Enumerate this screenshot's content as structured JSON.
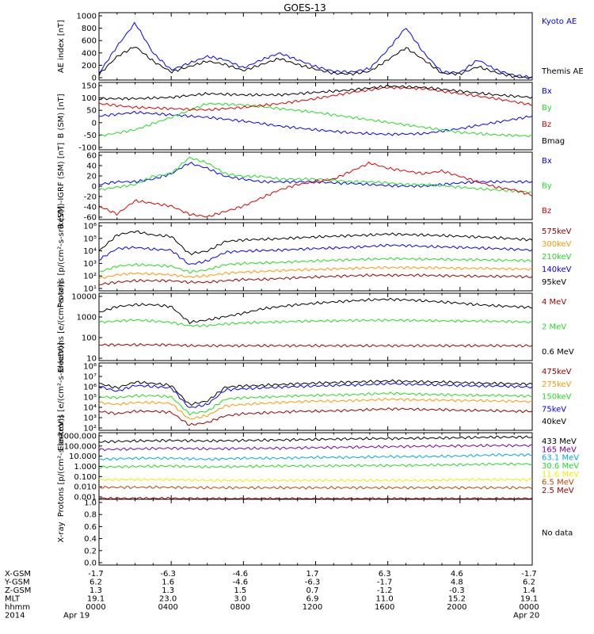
{
  "title": "GOES-13",
  "colors": {
    "black": "#000000",
    "blue": "#0000ff",
    "green": "#22dd22",
    "red": "#dd0000",
    "orange": "#ff9900",
    "darkred": "#990000",
    "purple": "#7700aa",
    "cyan": "#00aadd",
    "yellow": "#eeee00",
    "brown": "#bb4400"
  },
  "chart_data": [
    {
      "type": "line",
      "ylabel": "AE index [nT]",
      "ylim": [
        0,
        1000
      ],
      "yticks": [
        "1000",
        "800",
        "600",
        "400",
        "200",
        "0"
      ],
      "x_hours": [
        0,
        1,
        2,
        3,
        4,
        5,
        6,
        7,
        8,
        9,
        10,
        11,
        12,
        13,
        14,
        15,
        16,
        17,
        18,
        19,
        20,
        21,
        22,
        23,
        24
      ],
      "series": [
        {
          "name": "Kyoto AE",
          "color": "blue",
          "values": [
            100,
            500,
            850,
            400,
            150,
            250,
            350,
            300,
            180,
            300,
            400,
            300,
            200,
            130,
            120,
            170,
            450,
            780,
            400,
            120,
            110,
            300,
            150,
            70,
            40
          ]
        },
        {
          "name": "Themis AE",
          "color": "black",
          "values": [
            80,
            350,
            500,
            280,
            120,
            200,
            280,
            230,
            140,
            230,
            320,
            230,
            160,
            100,
            90,
            130,
            300,
            480,
            300,
            100,
            90,
            200,
            110,
            50,
            30
          ]
        }
      ]
    },
    {
      "type": "line",
      "ylabel": "B (SM) [nT]",
      "ylim": [
        -110,
        160
      ],
      "yticks": [
        "150",
        "100",
        "50",
        "0",
        "-50",
        "-100"
      ],
      "x_hours": [
        0,
        2,
        4,
        6,
        8,
        10,
        12,
        14,
        16,
        18,
        20,
        22,
        24
      ],
      "series": [
        {
          "name": "Bx",
          "color": "blue",
          "values": [
            25,
            40,
            30,
            20,
            5,
            -15,
            -30,
            -42,
            -48,
            -45,
            -25,
            0,
            25
          ]
        },
        {
          "name": "By",
          "color": "green",
          "values": [
            -55,
            -30,
            20,
            75,
            70,
            55,
            40,
            20,
            0,
            -20,
            -40,
            -50,
            -55
          ]
        },
        {
          "name": "Bz",
          "color": "red",
          "values": [
            75,
            60,
            55,
            50,
            60,
            75,
            95,
            120,
            140,
            135,
            115,
            95,
            70
          ]
        },
        {
          "name": "Bmag",
          "color": "black",
          "values": [
            95,
            95,
            100,
            115,
            110,
            110,
            120,
            130,
            145,
            140,
            125,
            110,
            100
          ]
        }
      ]
    },
    {
      "type": "line",
      "ylabel": "B (SM)-IGRF (SM) [nT]",
      "ylim": [
        -65,
        60
      ],
      "yticks": [
        "60",
        "40",
        "20",
        "0",
        "-20",
        "-40",
        "-60"
      ],
      "x_hours": [
        0,
        1,
        2,
        3,
        4,
        5,
        6,
        7,
        8,
        9,
        10,
        11,
        12,
        13,
        14,
        15,
        16,
        17,
        18,
        19,
        20,
        21,
        22,
        23,
        24
      ],
      "series": [
        {
          "name": "Bx",
          "color": "blue",
          "values": [
            0,
            5,
            5,
            10,
            20,
            40,
            30,
            15,
            10,
            5,
            5,
            5,
            5,
            3,
            2,
            0,
            -2,
            -3,
            -3,
            0,
            3,
            5,
            5,
            5,
            5
          ]
        },
        {
          "name": "By",
          "color": "green",
          "values": [
            -10,
            -5,
            0,
            15,
            20,
            50,
            40,
            20,
            15,
            15,
            10,
            10,
            10,
            8,
            5,
            5,
            3,
            0,
            0,
            -2,
            -5,
            -8,
            -10,
            -12,
            -15
          ]
        },
        {
          "name": "Bz",
          "color": "red",
          "values": [
            -40,
            -55,
            -30,
            -35,
            -40,
            -55,
            -60,
            -50,
            -40,
            -25,
            -10,
            0,
            5,
            10,
            25,
            40,
            30,
            25,
            20,
            25,
            15,
            5,
            -5,
            -10,
            -20
          ]
        }
      ]
    },
    {
      "type": "line",
      "ylabel": "Protons [p/(cm²-s-sr-keV)]",
      "yscale": "log",
      "ylim": [
        3,
        1000000
      ],
      "yticks": [
        "10⁶",
        "10⁵",
        "10⁴",
        "10³",
        "10²",
        "10¹"
      ],
      "x_hours": [
        0,
        1,
        2,
        3,
        4,
        5,
        6,
        7,
        8,
        9,
        10,
        11,
        12,
        13,
        14,
        15,
        16,
        17,
        18,
        19,
        20,
        21,
        22,
        23,
        24
      ],
      "series": [
        {
          "name": "575keV",
          "color": "darkred",
          "values": [
            10,
            15,
            20,
            20,
            20,
            15,
            15,
            20,
            25,
            25,
            30,
            35,
            40,
            45,
            50,
            55,
            55,
            55,
            55,
            50,
            50,
            45,
            45,
            45,
            40
          ]
        },
        {
          "name": "300keV",
          "color": "orange",
          "values": [
            30,
            60,
            80,
            70,
            60,
            40,
            50,
            80,
            100,
            110,
            130,
            150,
            160,
            180,
            200,
            220,
            230,
            230,
            220,
            220,
            200,
            200,
            190,
            180,
            170
          ]
        },
        {
          "name": "210keV",
          "color": "green",
          "values": [
            100,
            300,
            400,
            350,
            300,
            100,
            150,
            400,
            500,
            550,
            600,
            700,
            800,
            900,
            1000,
            1100,
            1200,
            1200,
            1100,
            1100,
            1000,
            1000,
            900,
            900,
            800
          ]
        },
        {
          "name": "140keV",
          "color": "blue",
          "values": [
            1000,
            8000,
            10000,
            7000,
            6000,
            400,
            800,
            4000,
            5000,
            5500,
            6000,
            7000,
            8000,
            9000,
            10000,
            12000,
            15000,
            14000,
            12000,
            11000,
            10000,
            9000,
            8000,
            7000,
            6000
          ]
        },
        {
          "name": "95keV",
          "color": "black",
          "values": [
            5000,
            100000,
            200000,
            100000,
            80000,
            3000,
            5000,
            30000,
            40000,
            45000,
            50000,
            60000,
            70000,
            80000,
            90000,
            100000,
            120000,
            110000,
            100000,
            90000,
            80000,
            70000,
            60000,
            50000,
            40000
          ]
        }
      ]
    },
    {
      "type": "line",
      "ylabel": "Electrons [e/(cm²-s-sr)]",
      "yscale": "log",
      "ylim": [
        3,
        10000
      ],
      "yticks": [
        "10000",
        "1000",
        "100",
        "10"
      ],
      "x_hours": [
        0,
        1,
        2,
        3,
        4,
        5,
        6,
        7,
        8,
        9,
        10,
        11,
        12,
        13,
        14,
        15,
        16,
        17,
        18,
        19,
        20,
        21,
        22,
        23,
        24
      ],
      "series": [
        {
          "name": "4 MeV",
          "color": "darkred",
          "values": [
            20,
            20,
            20,
            20,
            20,
            18,
            18,
            18,
            18,
            18,
            18,
            18,
            18,
            18,
            18,
            18,
            18,
            18,
            18,
            18,
            18,
            18,
            18,
            18,
            18
          ]
        },
        {
          "name": "2 MeV",
          "color": "green",
          "values": [
            300,
            350,
            400,
            350,
            300,
            200,
            200,
            250,
            280,
            300,
            320,
            340,
            350,
            360,
            380,
            380,
            390,
            380,
            370,
            360,
            350,
            350,
            340,
            330,
            300
          ]
        },
        {
          "name": "0.6 MeV",
          "color": "black",
          "values": [
            1000,
            2000,
            2500,
            2500,
            2000,
            300,
            400,
            600,
            900,
            1500,
            2000,
            2500,
            3000,
            3500,
            4000,
            4500,
            4800,
            4500,
            4000,
            3500,
            3000,
            2500,
            2200,
            2000,
            1800
          ]
        }
      ]
    },
    {
      "type": "line",
      "ylabel": "Electrons [e/(cm²-s-sr-keV)]",
      "yscale": "log",
      "ylim": [
        100,
        100000000
      ],
      "yticks": [
        "10⁸",
        "10⁷",
        "10⁶",
        "10⁵",
        "10⁴",
        "10³",
        "10²"
      ],
      "x_hours": [
        0,
        1,
        2,
        3,
        4,
        5,
        6,
        7,
        8,
        9,
        10,
        11,
        12,
        13,
        14,
        15,
        16,
        17,
        18,
        19,
        20,
        21,
        22,
        23,
        24
      ],
      "series": [
        {
          "name": "475keV",
          "color": "darkred",
          "values": [
            5000,
            3000,
            5000,
            5000,
            4000,
            300,
            500,
            2000,
            3000,
            3500,
            4000,
            5000,
            5000,
            5500,
            6000,
            7000,
            8000,
            8000,
            7000,
            7000,
            6000,
            6000,
            5500,
            5000,
            5000
          ]
        },
        {
          "name": "275keV",
          "color": "orange",
          "values": [
            30000,
            20000,
            30000,
            30000,
            25000,
            1000,
            2000,
            15000,
            20000,
            25000,
            30000,
            35000,
            40000,
            40000,
            45000,
            50000,
            60000,
            55000,
            50000,
            50000,
            45000,
            45000,
            40000,
            40000,
            35000
          ]
        },
        {
          "name": "150keV",
          "color": "green",
          "values": [
            100000,
            80000,
            120000,
            120000,
            100000,
            3000,
            5000,
            60000,
            80000,
            90000,
            100000,
            120000,
            130000,
            140000,
            150000,
            170000,
            200000,
            180000,
            160000,
            150000,
            140000,
            130000,
            130000,
            120000,
            110000
          ]
        },
        {
          "name": "75keV",
          "color": "blue",
          "values": [
            800000,
            300000,
            1000000,
            800000,
            600000,
            10000,
            20000,
            400000,
            500000,
            600000,
            700000,
            800000,
            900000,
            1000000,
            1100000,
            1200000,
            1500000,
            1300000,
            1200000,
            1100000,
            1000000,
            900000,
            900000,
            800000,
            700000
          ]
        },
        {
          "name": "40keV",
          "color": "black",
          "values": [
            1500000,
            600000,
            2000000,
            1500000,
            1000000,
            20000,
            40000,
            700000,
            900000,
            1000000,
            1200000,
            1400000,
            1600000,
            1800000,
            2000000,
            2200000,
            2500000,
            2300000,
            2100000,
            2000000,
            1800000,
            1600000,
            1500000,
            1400000,
            1300000
          ]
        }
      ]
    },
    {
      "type": "line",
      "ylabel": "Protons [p/(cm²-s-sr-keV)]",
      "yscale": "log",
      "ylim": [
        0.001,
        1000
      ],
      "yticks": [
        "1000.000",
        "100.000",
        "10.000",
        "1.000",
        "0.100",
        "0.010",
        "0.001"
      ],
      "x_hours": [
        0,
        2,
        4,
        6,
        8,
        10,
        12,
        14,
        16,
        18,
        20,
        22,
        24
      ],
      "series": [
        {
          "name": "433 MeV",
          "color": "black",
          "values": [
            150,
            180,
            200,
            180,
            200,
            220,
            250,
            280,
            300,
            320,
            350,
            400,
            400
          ]
        },
        {
          "name": "165 MeV",
          "color": "purple",
          "values": [
            30,
            35,
            40,
            35,
            38,
            40,
            45,
            50,
            55,
            60,
            65,
            70,
            70
          ]
        },
        {
          "name": "63.1 MeV",
          "color": "cyan",
          "values": [
            4,
            5,
            5,
            4,
            5,
            5,
            6,
            6,
            7,
            7,
            8,
            10,
            10
          ]
        },
        {
          "name": "30.6 MeV",
          "color": "green",
          "values": [
            0.8,
            0.9,
            1.0,
            0.8,
            0.9,
            1.0,
            1.0,
            1.1,
            1.1,
            1.2,
            1.3,
            1.5,
            1.5
          ]
        },
        {
          "name": "11.6 MeV",
          "color": "yellow",
          "values": [
            0.06,
            0.06,
            0.06,
            0.05,
            0.05,
            0.05,
            0.05,
            0.05,
            0.05,
            0.05,
            0.06,
            0.06,
            0.06
          ]
        },
        {
          "name": "6.5 MeV",
          "color": "brown",
          "values": [
            0.012,
            0.012,
            0.012,
            0.011,
            0.011,
            0.011,
            0.011,
            0.011,
            0.011,
            0.011,
            0.011,
            0.011,
            0.011
          ]
        },
        {
          "name": "2.5 MeV",
          "color": "darkred",
          "values": [
            0.0012,
            0.0012,
            0.0012,
            0.0011,
            0.0011,
            0.0011,
            0.0011,
            0.0011,
            0.0011,
            0.0011,
            0.0011,
            0.0011,
            0.0011
          ]
        }
      ]
    },
    {
      "type": "line",
      "ylabel": "X-ray",
      "ylim": [
        0,
        1
      ],
      "yticks": [
        "1.0",
        "0.8",
        "0.6",
        "0.4",
        "0.2",
        "0.0"
      ],
      "series": [],
      "note": "No data"
    }
  ],
  "orbit_table": {
    "rows": [
      {
        "label": "X-GSM",
        "values": [
          "-1.7",
          "-6.3",
          "-4.6",
          "1.7",
          "6.3",
          "4.6",
          "-1.7"
        ]
      },
      {
        "label": "Y-GSM",
        "values": [
          "6.2",
          "1.6",
          "-4.6",
          "-6.3",
          "-1.7",
          "4.8",
          "6.2"
        ]
      },
      {
        "label": "Z-GSM",
        "values": [
          "1.3",
          "1.3",
          "1.5",
          "0.7",
          "-1.2",
          "-0.3",
          "1.4"
        ]
      },
      {
        "label": "MLT",
        "values": [
          "19.1",
          "23.0",
          "3.0",
          "6.9",
          "11.0",
          "15.2",
          "19.1"
        ]
      },
      {
        "label": "hhmm",
        "values": [
          "0000",
          "0400",
          "0800",
          "1200",
          "1600",
          "2000",
          "0000"
        ]
      },
      {
        "label": "2014",
        "values": [
          "Apr 19",
          "",
          "",
          "",
          "",
          "",
          "Apr 20"
        ]
      }
    ]
  }
}
